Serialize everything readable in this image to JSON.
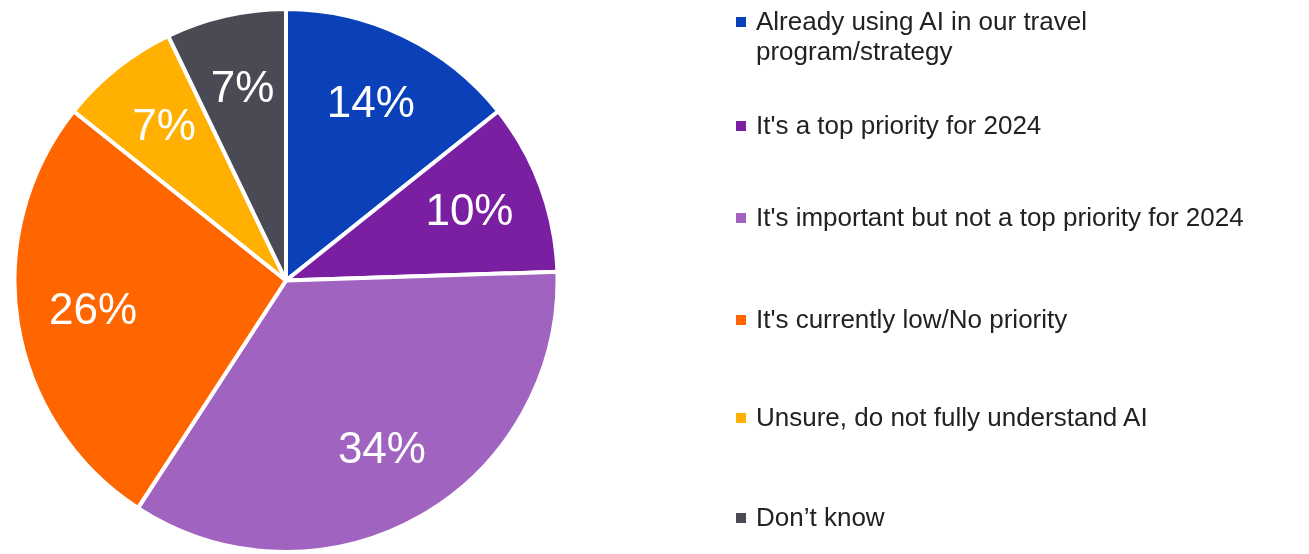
{
  "chart_data": {
    "type": "pie",
    "categories": [
      "Already using AI in our travel program/strategy",
      "It's a top priority for 2024",
      "It's important but not a top priority for 2024",
      "It's currently low/No priority",
      "Unsure, do not fully understand AI",
      "Don’t know"
    ],
    "values": [
      14,
      10,
      34,
      26,
      7,
      7
    ],
    "colors": [
      "#0b41b8",
      "#7a1fa2",
      "#a063bf",
      "#ff6600",
      "#ffb000",
      "#4a4a55"
    ],
    "value_labels": [
      "14%",
      "10%",
      "34%",
      "26%",
      "7%",
      "7%"
    ],
    "legend": "right"
  }
}
